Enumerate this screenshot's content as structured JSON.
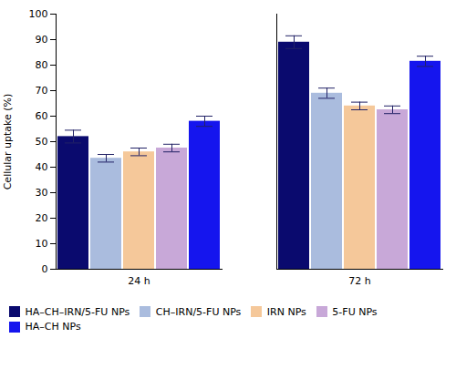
{
  "chart_data": {
    "type": "bar",
    "ylabel": "Cellular uptake (%)",
    "categories": [
      "24 h",
      "72 h"
    ],
    "series": [
      {
        "name": "HA–CH–IRN/5-FU NPs",
        "color": "#0A0A6E",
        "values": [
          52.0,
          89.0
        ],
        "errors": [
          2.5,
          2.5
        ]
      },
      {
        "name": "CH–IRN/5-FU NPs",
        "color": "#AABCDE",
        "values": [
          43.5,
          69.0
        ],
        "errors": [
          1.5,
          2.0
        ]
      },
      {
        "name": "IRN NPs",
        "color": "#F5C89A",
        "values": [
          46.0,
          64.0
        ],
        "errors": [
          1.5,
          1.5
        ]
      },
      {
        "name": "5-FU NPs",
        "color": "#C8A8D8",
        "values": [
          47.5,
          62.5
        ],
        "errors": [
          1.5,
          1.5
        ]
      },
      {
        "name": "HA–CH NPs",
        "color": "#1515EE",
        "values": [
          58.0,
          81.5
        ],
        "errors": [
          2.0,
          2.0
        ]
      }
    ],
    "ylim": [
      0,
      100
    ],
    "yticks": [
      0,
      10,
      20,
      30,
      40,
      50,
      60,
      70,
      80,
      90,
      100
    ],
    "grid": false,
    "legend": "bottom"
  }
}
